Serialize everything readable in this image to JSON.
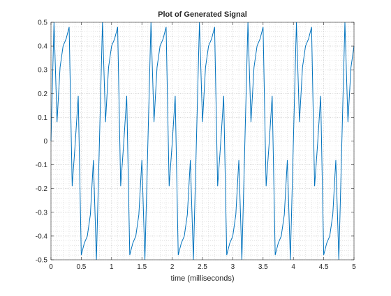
{
  "chart_data": {
    "type": "line",
    "title": "Plot of Generated Signal",
    "xlabel": "time (milliseconds)",
    "ylabel": "",
    "xlim": [
      0,
      5
    ],
    "ylim": [
      -0.5,
      0.5
    ],
    "xticks": [
      0,
      0.5,
      1,
      1.5,
      2,
      2.5,
      3,
      3.5,
      4,
      4.5,
      5
    ],
    "xtick_labels": [
      "0",
      "0.5",
      "1",
      "1.5",
      "2",
      "2.5",
      "3",
      "3.5",
      "4",
      "4.5",
      "5"
    ],
    "yticks": [
      -0.5,
      -0.4,
      -0.3,
      -0.2,
      -0.1,
      0,
      0.1,
      0.2,
      0.3,
      0.4,
      0.5
    ],
    "ytick_labels": [
      "-0.5",
      "-0.4",
      "-0.3",
      "-0.2",
      "-0.1",
      "0",
      "0.1",
      "0.2",
      "0.3",
      "0.4",
      "0.5"
    ],
    "grid": "major-and-minor-dotted",
    "line_color": "#0072BD",
    "series": [
      {
        "x": [
          0,
          0.05,
          0.1,
          0.15,
          0.2,
          0.25,
          0.3,
          0.35,
          0.4,
          0.45,
          0.5,
          0.55,
          0.6,
          0.65,
          0.7,
          0.75,
          0.8,
          0.85,
          0.9,
          0.95,
          1.0,
          1.05,
          1.1,
          1.15,
          1.2,
          1.25,
          1.3,
          1.35,
          1.4,
          1.45,
          1.5,
          1.55,
          1.6,
          1.65,
          1.7,
          1.75,
          1.8,
          1.85,
          1.9,
          1.95,
          2.0,
          2.05,
          2.1,
          2.15,
          2.2,
          2.25,
          2.3,
          2.35,
          2.4,
          2.45,
          2.5,
          2.55,
          2.6,
          2.65,
          2.7,
          2.75,
          2.8,
          2.85,
          2.9,
          2.95,
          3.0,
          3.05,
          3.1,
          3.15,
          3.2,
          3.25,
          3.3,
          3.35,
          3.4,
          3.45,
          3.5,
          3.55,
          3.6,
          3.65,
          3.7,
          3.75,
          3.8,
          3.85,
          3.9,
          3.95,
          4.0,
          4.05,
          4.1,
          4.15,
          4.2,
          4.25,
          4.3,
          4.35,
          4.4,
          4.45,
          4.5,
          4.55,
          4.6,
          4.65,
          4.7,
          4.75,
          4.8,
          4.85,
          4.9,
          4.95,
          5.0
        ],
        "y": [
          0.0,
          0.5,
          0.08,
          0.31,
          0.4,
          0.43,
          0.48,
          -0.19,
          -0.01,
          0.19,
          -0.48,
          -0.43,
          -0.4,
          -0.31,
          -0.08,
          -0.5,
          0.0,
          0.5,
          0.08,
          0.31,
          0.4,
          0.43,
          0.48,
          -0.19,
          -0.01,
          0.19,
          -0.48,
          -0.43,
          -0.4,
          -0.31,
          -0.08,
          -0.5,
          0.0,
          0.5,
          0.08,
          0.31,
          0.4,
          0.43,
          0.48,
          -0.19,
          -0.01,
          0.19,
          -0.48,
          -0.43,
          -0.4,
          -0.31,
          -0.08,
          -0.5,
          0.0,
          0.5,
          0.08,
          0.31,
          0.4,
          0.43,
          0.48,
          -0.19,
          -0.01,
          0.19,
          -0.48,
          -0.43,
          -0.4,
          -0.31,
          -0.08,
          -0.5,
          0.0,
          0.5,
          0.08,
          0.31,
          0.4,
          0.43,
          0.48,
          -0.19,
          -0.01,
          0.19,
          -0.48,
          -0.43,
          -0.4,
          -0.31,
          -0.08,
          -0.5,
          0.0,
          0.5,
          0.08,
          0.31,
          0.4,
          0.43,
          0.48,
          -0.19,
          -0.01,
          0.19,
          -0.48,
          -0.43,
          -0.4,
          -0.31,
          -0.08,
          -0.5,
          0.0,
          0.5,
          0.08,
          0.31,
          0.4
        ]
      }
    ]
  }
}
